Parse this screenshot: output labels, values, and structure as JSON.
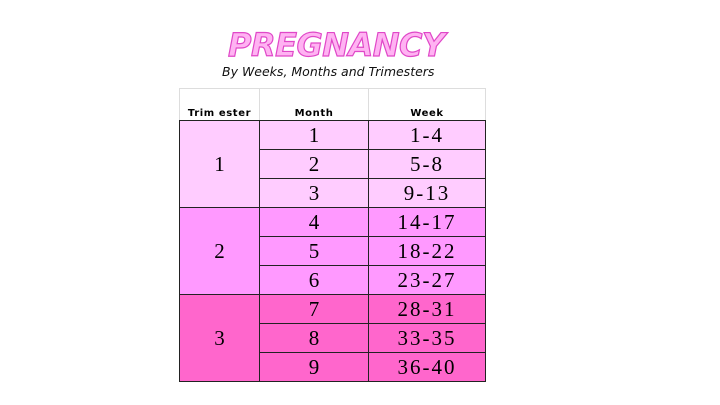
{
  "header": {
    "title": "PREGNANCY",
    "subtitle": "By Weeks, Months and Trimesters"
  },
  "colors": {
    "title_fill": "#ffb3f2",
    "title_outline": "#e048c8",
    "trimester_1": "#ffccff",
    "trimester_2": "#ff99ff",
    "trimester_3": "#ff66cc"
  },
  "table": {
    "columns": [
      "Trim ester",
      "Month",
      "Week"
    ],
    "trimesters": [
      {
        "label": "1",
        "color": "#ffccff",
        "rows": [
          {
            "month": "1",
            "week": "1-4"
          },
          {
            "month": "2",
            "week": "5-8"
          },
          {
            "month": "3",
            "week": "9-13"
          }
        ]
      },
      {
        "label": "2",
        "color": "#ff99ff",
        "rows": [
          {
            "month": "4",
            "week": "14-17"
          },
          {
            "month": "5",
            "week": "18-22"
          },
          {
            "month": "6",
            "week": "23-27"
          }
        ]
      },
      {
        "label": "3",
        "color": "#ff66cc",
        "rows": [
          {
            "month": "7",
            "week": "28-31"
          },
          {
            "month": "8",
            "week": "33-35"
          },
          {
            "month": "9",
            "week": "36-40"
          }
        ]
      }
    ]
  }
}
